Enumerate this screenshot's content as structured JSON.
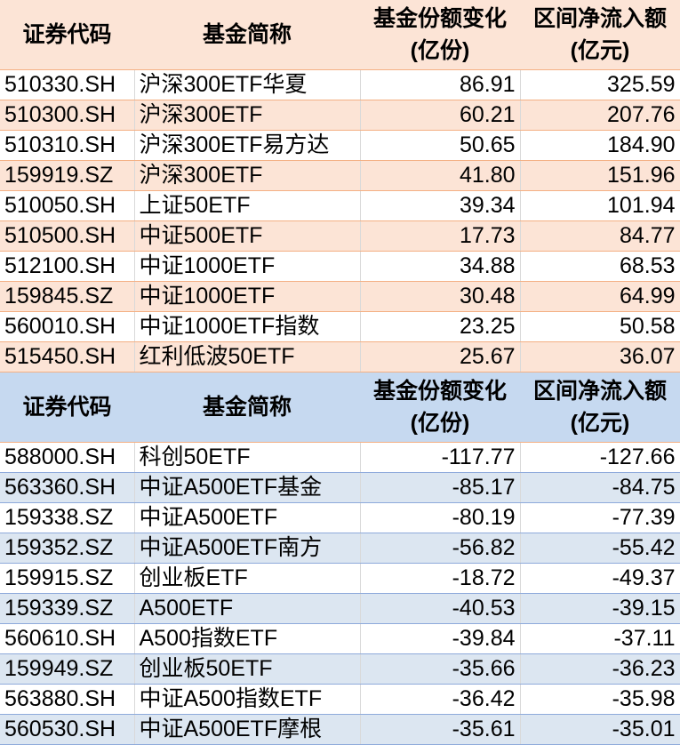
{
  "headers": {
    "code": "证券代码",
    "name": "基金简称",
    "share_change": [
      "基金份额变化",
      "(亿份)"
    ],
    "net_inflow": [
      "区间净流入额",
      "(亿元)"
    ]
  },
  "colors": {
    "peach": "#fce4d6",
    "blue_header": "#c6d9f0",
    "blue_row": "#dce6f1"
  },
  "inflow_table": [
    [
      "510330.SH",
      "沪深300ETF华夏",
      "86.91",
      "325.59"
    ],
    [
      "510300.SH",
      "沪深300ETF",
      "60.21",
      "207.76"
    ],
    [
      "510310.SH",
      "沪深300ETF易方达",
      "50.65",
      "184.90"
    ],
    [
      "159919.SZ",
      "沪深300ETF",
      "41.80",
      "151.96"
    ],
    [
      "510050.SH",
      "上证50ETF",
      "39.34",
      "101.94"
    ],
    [
      "510500.SH",
      "中证500ETF",
      "17.73",
      "84.77"
    ],
    [
      "512100.SH",
      "中证1000ETF",
      "34.88",
      "68.53"
    ],
    [
      "159845.SZ",
      "中证1000ETF",
      "30.48",
      "64.99"
    ],
    [
      "560010.SH",
      "中证1000ETF指数",
      "23.25",
      "50.58"
    ],
    [
      "515450.SH",
      "红利低波50ETF",
      "25.67",
      "36.07"
    ]
  ],
  "outflow_table": [
    [
      "588000.SH",
      "科创50ETF",
      "-117.77",
      "-127.66"
    ],
    [
      "563360.SH",
      "中证A500ETF基金",
      "-85.17",
      "-84.75"
    ],
    [
      "159338.SZ",
      "中证A500ETF",
      "-80.19",
      "-77.39"
    ],
    [
      "159352.SZ",
      "中证A500ETF南方",
      "-56.82",
      "-55.42"
    ],
    [
      "159915.SZ",
      "创业板ETF",
      "-18.72",
      "-49.37"
    ],
    [
      "159339.SZ",
      "A500ETF",
      "-40.53",
      "-39.15"
    ],
    [
      "560610.SH",
      "A500指数ETF",
      "-39.84",
      "-37.11"
    ],
    [
      "159949.SZ",
      "创业板50ETF",
      "-35.66",
      "-36.23"
    ],
    [
      "563880.SH",
      "中证A500指数ETF",
      "-36.42",
      "-35.98"
    ],
    [
      "560530.SH",
      "中证A500ETF摩根",
      "-35.61",
      "-35.01"
    ]
  ]
}
